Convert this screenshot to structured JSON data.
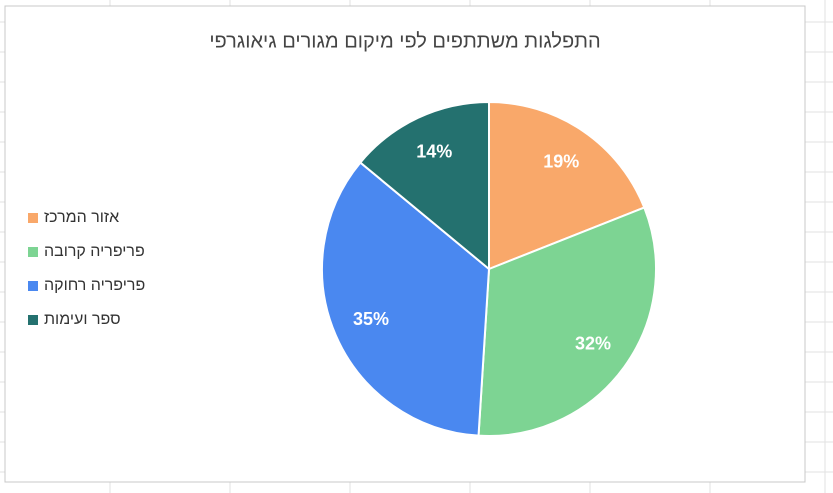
{
  "chart_data": {
    "type": "pie",
    "title": "התפלגות משתתפים לפי מיקום מגורים גיאוגרפי",
    "categories": [
      "אזור המרכז",
      "פריפריה קרובה",
      "פריפריה רחוקה",
      "ספר ועימות"
    ],
    "values": [
      19,
      32,
      35,
      14
    ],
    "value_labels": [
      "19%",
      "32%",
      "35%",
      "14%"
    ],
    "colors": [
      "#f9a86a",
      "#7dd493",
      "#4a88f0",
      "#24716f"
    ],
    "legend": "left"
  }
}
